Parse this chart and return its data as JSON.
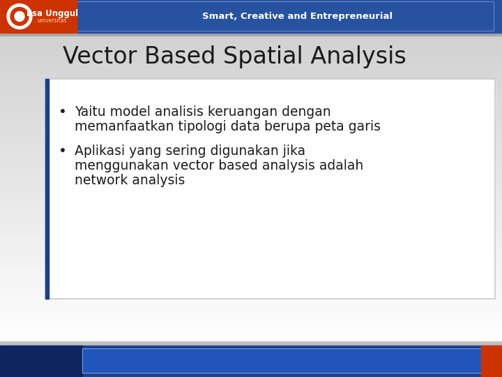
{
  "title": "Vector Based Spatial Analysis",
  "title_fontsize": 24,
  "title_color": "#1a1a1a",
  "bullet1_line1": "Yaitu model analisis keruangan dengan",
  "bullet1_line2": "memanfaatkan tipologi data berupa peta garis",
  "bullet2_line1": "Aplikasi yang sering digunakan jika",
  "bullet2_line2": "menggunakan vector based analysis adalah",
  "bullet2_line3": "network analysis",
  "body_fontsize": 13.5,
  "body_color": "#1a1a1a",
  "slide_bg_top": "#d0d0d0",
  "slide_bg_bottom": "#f8f8f8",
  "header_dark_blue": "#1c3f8c",
  "header_orange": "#cc3300",
  "header_tagline": "Smart, Creative and Entrepreneurial",
  "footer_dark_blue": "#1c3f8c",
  "footer_orange": "#cc3300",
  "footer_lighter_blue": "#2255bb",
  "content_box_border": "#c8c8c8",
  "left_bar_blue": "#1c3f8c"
}
